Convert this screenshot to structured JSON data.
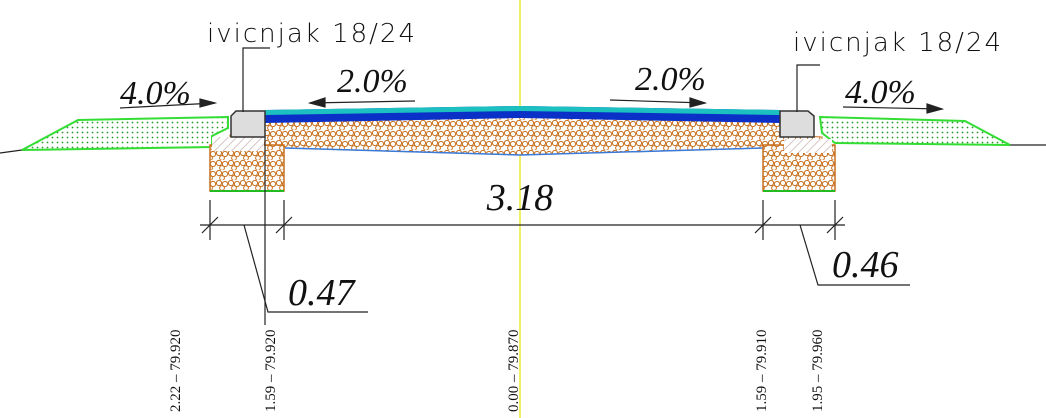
{
  "labels": {
    "curb_left": "ivicnjak 18/24",
    "curb_right": "ivicnjak 18/24",
    "slope_left_outer": "4.0%",
    "slope_left_road": "2.0%",
    "slope_right_road": "2.0%",
    "slope_right_outer": "4.0%"
  },
  "dimensions": {
    "road_width": "3.18",
    "left_curb": "0.47",
    "right_curb": "0.46"
  },
  "stations": [
    "2.22 – 79.920",
    "1.59 – 79.920",
    "0.00 – 79.870",
    "1.59 – 79.910",
    "1.95 – 79.960"
  ]
}
